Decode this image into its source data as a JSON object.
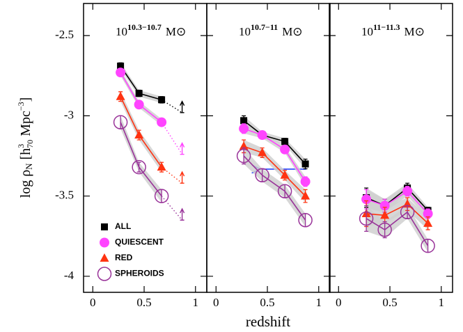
{
  "chart_data": [
    {
      "type": "line",
      "title": "10",
      "title_exp": "10.3−10.7",
      "title_unit": "M⊙",
      "ylabel": [
        "log ρ",
        "N",
        " [h",
        "3",
        "70",
        " Mpc",
        "−3",
        "]"
      ],
      "xlim": [
        -0.09,
        1.11
      ],
      "ylim": [
        -4.1,
        -2.3
      ],
      "xticks": [
        0,
        0.5,
        1
      ],
      "yticks": [
        -2.5,
        -3,
        -3.5,
        -4
      ],
      "ytick_labels": true,
      "legend": "lower left",
      "x": [
        0.27,
        0.45,
        0.67,
        0.87
      ],
      "series": [
        {
          "name": "ALL",
          "color": "#000000",
          "marker": "square",
          "values": [
            -2.69,
            -2.86,
            -2.9,
            -2.98
          ],
          "errors": [
            0.02,
            0.02,
            0.02,
            0.07
          ],
          "limits": [
            false,
            false,
            false,
            true
          ]
        },
        {
          "name": "QUIESCENT",
          "color": "#ff44ff",
          "marker": "circle",
          "values": [
            -2.73,
            -2.93,
            -3.04,
            -3.24
          ],
          "errors": [
            0.02,
            0.02,
            0.02,
            0.07
          ],
          "limits": [
            false,
            false,
            false,
            true
          ]
        },
        {
          "name": "RED",
          "color": "#ff3311",
          "marker": "triangle",
          "values": [
            -2.88,
            -3.12,
            -3.32,
            -3.42
          ],
          "errors": [
            0.03,
            0.03,
            0.03,
            0.07
          ],
          "limits": [
            false,
            false,
            false,
            true
          ]
        },
        {
          "name": "SPHEROIDS",
          "color": "#993399",
          "marker": "open-circle",
          "values": [
            -3.04,
            -3.32,
            -3.5,
            -3.65
          ],
          "errors": [
            0.04,
            0.03,
            0.04,
            0.07
          ],
          "limits": [
            false,
            false,
            false,
            true
          ]
        }
      ]
    },
    {
      "type": "line",
      "title": "10",
      "title_exp": "10.7−11",
      "title_unit": "M⊙",
      "xlabel": "redshift",
      "xlim": [
        -0.09,
        1.11
      ],
      "ylim": [
        -4.1,
        -2.3
      ],
      "xticks": [
        0,
        0.5,
        1
      ],
      "yticks": [
        -2.5,
        -3,
        -3.5,
        -4
      ],
      "ytick_labels": false,
      "x": [
        0.27,
        0.45,
        0.67,
        0.87
      ],
      "series": [
        {
          "color": "#000000",
          "marker": "square",
          "values": [
            -3.03,
            -3.12,
            -3.16,
            -3.3
          ],
          "errors": [
            0.03,
            0.02,
            0.02,
            0.03
          ]
        },
        {
          "color": "#ff44ff",
          "marker": "circle",
          "values": [
            -3.08,
            -3.12,
            -3.21,
            -3.41
          ],
          "errors": [
            0.03,
            0.02,
            0.02,
            0.03
          ]
        },
        {
          "color": "#ff3311",
          "marker": "triangle",
          "values": [
            -3.19,
            -3.23,
            -3.37,
            -3.5
          ],
          "errors": [
            0.04,
            0.03,
            0.03,
            0.04
          ]
        },
        {
          "color": "#993399",
          "marker": "open-circle",
          "values": [
            -3.25,
            -3.37,
            -3.47,
            -3.65
          ],
          "errors": [
            0.05,
            0.04,
            0.04,
            0.04
          ]
        }
      ]
    },
    {
      "type": "line",
      "title": "10",
      "title_exp": "11−11.3",
      "title_unit": "M⊙",
      "xlim": [
        -0.09,
        1.11
      ],
      "ylim": [
        -4.1,
        -2.3
      ],
      "xticks": [
        0,
        0.5,
        1
      ],
      "yticks": [
        -2.5,
        -3,
        -3.5,
        -4
      ],
      "ytick_labels": false,
      "x": [
        0.27,
        0.45,
        0.67,
        0.87
      ],
      "series": [
        {
          "color": "#000000",
          "marker": "square",
          "values": [
            -3.51,
            -3.56,
            -3.45,
            -3.59
          ],
          "errors": [
            0.06,
            0.04,
            0.03,
            0.02
          ]
        },
        {
          "color": "#ff44ff",
          "marker": "circle",
          "values": [
            -3.52,
            -3.56,
            -3.47,
            -3.61
          ],
          "errors": [
            0.06,
            0.04,
            0.03,
            0.03
          ]
        },
        {
          "color": "#ff3311",
          "marker": "triangle",
          "values": [
            -3.61,
            -3.62,
            -3.55,
            -3.67
          ],
          "errors": [
            0.08,
            0.05,
            0.04,
            0.04
          ]
        },
        {
          "color": "#993399",
          "marker": "open-circle",
          "values": [
            -3.64,
            -3.71,
            -3.6,
            -3.81
          ],
          "errors": [
            0.08,
            0.05,
            0.04,
            0.04
          ]
        }
      ]
    }
  ]
}
